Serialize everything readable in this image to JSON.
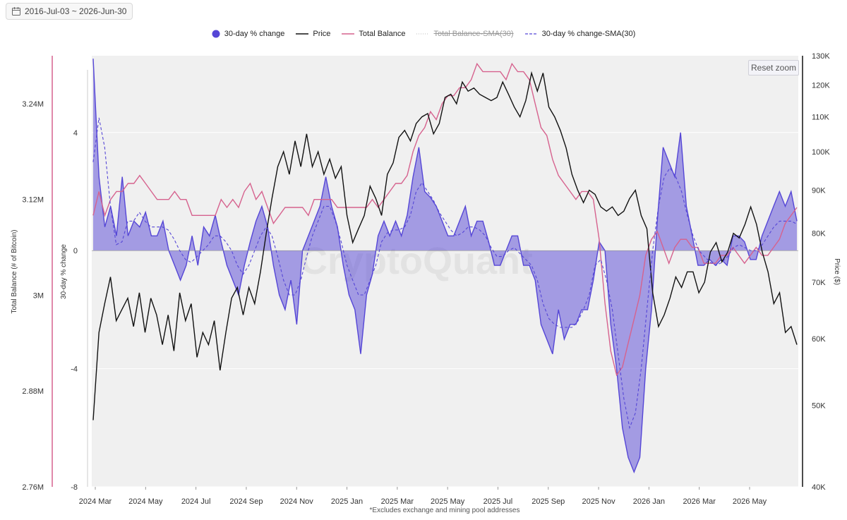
{
  "date_range": "2016-Jul-03 ~ 2026-Jun-30",
  "reset_zoom_label": "Reset zoom",
  "footnote": "*Excludes exchange and mining pool addresses",
  "watermark": "CryptoQuant",
  "colors": {
    "pct_fill": "#5546d6",
    "price": "#111111",
    "balance": "#d6628e",
    "sma_pct": "#5546d6",
    "sma_balance": "#bbbbbb"
  },
  "legend": [
    {
      "key": "pct",
      "label": "30-day % change",
      "type": "dot",
      "enabled": true
    },
    {
      "key": "price",
      "label": "Price",
      "type": "line",
      "enabled": true
    },
    {
      "key": "balance",
      "label": "Total Balance",
      "type": "line",
      "enabled": true
    },
    {
      "key": "balance_sma",
      "label": "Total Balance-SMA(30)",
      "type": "dotted",
      "enabled": false
    },
    {
      "key": "pct_sma",
      "label": "30-day % change-SMA(30)",
      "type": "dashed",
      "enabled": true
    }
  ],
  "chart_data": {
    "type": "line",
    "x_ticks": [
      "2024 Mar",
      "2024 May",
      "2024 Jul",
      "2024 Sep",
      "2024 Nov",
      "2025 Jan",
      "2025 Mar",
      "2025 May",
      "2025 Jul",
      "2025 Sep",
      "2025 Nov",
      "2026 Jan",
      "2026 Mar",
      "2026 May"
    ],
    "y_axes": {
      "balance": {
        "label": "Total Balance (# of Bitcoin)",
        "ticks": [
          "3.24M",
          "3.12M",
          "3M",
          "2.88M",
          "2.76M"
        ],
        "range": [
          2.76,
          3.3
        ]
      },
      "pct": {
        "label": "30-day % change",
        "ticks": [
          "4",
          "0",
          "-4",
          "-8"
        ],
        "range": [
          -8,
          6.6
        ]
      },
      "price": {
        "label": "Price ($)",
        "scale": "log",
        "ticks": [
          "130K",
          "120K",
          "110K",
          "100K",
          "90K",
          "80K",
          "70K",
          "60K",
          "50K",
          "40K"
        ],
        "range": [
          40,
          130
        ]
      }
    },
    "series": [
      {
        "name": "30-day % change",
        "key": "pct",
        "kind": "area",
        "values": [
          6.5,
          2.5,
          0.8,
          1.5,
          0.5,
          2.5,
          0.5,
          1.0,
          0.8,
          1.3,
          0.5,
          0.5,
          1.0,
          0,
          -0.5,
          -1.0,
          -0.5,
          0.5,
          -0.5,
          0.8,
          0.5,
          1.2,
          0.3,
          -0.5,
          -1.0,
          -1.5,
          -0.5,
          0.3,
          1.0,
          1.5,
          0.8,
          -0.5,
          -1.5,
          -2.0,
          -1.0,
          -2.5,
          0,
          0.5,
          1.0,
          1.5,
          2.5,
          1.5,
          0.8,
          -0.5,
          -1.5,
          -2.0,
          -3.5,
          -1.5,
          -0.8,
          0.5,
          1.0,
          0.5,
          1.0,
          0.5,
          1.2,
          2.5,
          3.5,
          2.0,
          1.8,
          1.5,
          1.0,
          0.5,
          0.5,
          1.0,
          1.5,
          0.5,
          1.0,
          1.0,
          0.3,
          -0.5,
          -0.5,
          0,
          0.5,
          0.5,
          -0.5,
          -0.5,
          -1.0,
          -2.5,
          -3.0,
          -3.5,
          -2.0,
          -3.0,
          -2.5,
          -2.5,
          -2.0,
          -2.0,
          -1.0,
          0.3,
          0,
          -2.5,
          -4.0,
          -6.0,
          -7.0,
          -7.5,
          -7.0,
          -4.0,
          -2.0,
          1.0,
          3.5,
          3.0,
          2.5,
          4.0,
          1.5,
          0.5,
          -0.5,
          -0.5,
          -0.3,
          -0.5,
          -0.3,
          -0.5,
          0.5,
          0.5,
          0.3,
          -0.3,
          -0.3,
          0.5,
          1.0,
          1.5,
          2.0,
          1.5,
          2.0,
          1.0
        ]
      },
      {
        "name": "Price",
        "key": "price",
        "kind": "line",
        "values": [
          48,
          61,
          66,
          71,
          63,
          65,
          67,
          62,
          68,
          61,
          67,
          64,
          59,
          64,
          58,
          68,
          63,
          66,
          57,
          61,
          59,
          63,
          55,
          61,
          67,
          69,
          64,
          69,
          66,
          72,
          80,
          88,
          96,
          100,
          94,
          103,
          96,
          105,
          96,
          100,
          94,
          98,
          93,
          96,
          84,
          78,
          81,
          84,
          91,
          88,
          84,
          94,
          97,
          104,
          106,
          103,
          108,
          110,
          111,
          105,
          108,
          116,
          117,
          114,
          121,
          118,
          119,
          117,
          116,
          115,
          116,
          121,
          117,
          113,
          110,
          115,
          124,
          118,
          124,
          113,
          110,
          106,
          101,
          94,
          90,
          87,
          90,
          89,
          86,
          85,
          86,
          84,
          85,
          88,
          90,
          84,
          81,
          68,
          62,
          64,
          67,
          71,
          69,
          72,
          72,
          68,
          70,
          76,
          78,
          74,
          76,
          80,
          79,
          82,
          86,
          82,
          76,
          72,
          66,
          68,
          61,
          62,
          59
        ]
      },
      {
        "name": "Total Balance",
        "key": "balance",
        "kind": "line",
        "values": [
          3.1,
          3.13,
          3.1,
          3.12,
          3.13,
          3.13,
          3.14,
          3.14,
          3.15,
          3.14,
          3.13,
          3.12,
          3.12,
          3.12,
          3.13,
          3.12,
          3.12,
          3.1,
          3.1,
          3.1,
          3.1,
          3.1,
          3.12,
          3.11,
          3.12,
          3.11,
          3.13,
          3.14,
          3.12,
          3.13,
          3.11,
          3.09,
          3.1,
          3.11,
          3.11,
          3.11,
          3.11,
          3.1,
          3.12,
          3.12,
          3.12,
          3.12,
          3.11,
          3.11,
          3.11,
          3.11,
          3.11,
          3.11,
          3.12,
          3.11,
          3.12,
          3.13,
          3.14,
          3.14,
          3.15,
          3.18,
          3.2,
          3.21,
          3.23,
          3.22,
          3.24,
          3.25,
          3.25,
          3.26,
          3.26,
          3.27,
          3.29,
          3.28,
          3.28,
          3.28,
          3.28,
          3.27,
          3.29,
          3.28,
          3.28,
          3.27,
          3.24,
          3.21,
          3.2,
          3.17,
          3.15,
          3.14,
          3.13,
          3.12,
          3.13,
          3.13,
          3.12,
          3.07,
          2.99,
          2.93,
          2.9,
          2.91,
          2.94,
          2.97,
          3.0,
          3.05,
          3.07,
          3.08,
          3.06,
          3.04,
          3.06,
          3.07,
          3.07,
          3.06,
          3.06,
          3.04,
          3.04,
          3.04,
          3.05,
          3.05,
          3.06,
          3.05,
          3.04,
          3.05,
          3.06,
          3.05,
          3.05,
          3.06,
          3.07,
          3.09,
          3.1,
          3.11
        ]
      },
      {
        "name": "30-day % change-SMA(30)",
        "key": "pct_sma",
        "kind": "dashed",
        "values": [
          3.0,
          4.5,
          3.5,
          1.5,
          0.2,
          0.3,
          1.0,
          1.0,
          1.3,
          1.0,
          0.8,
          0.8,
          0.8,
          0.7,
          0.4,
          0,
          -0.3,
          -0.4,
          -0.2,
          0,
          0.2,
          0.5,
          0.5,
          0.3,
          0,
          -0.5,
          -0.8,
          -0.5,
          0,
          0.5,
          0.8,
          0.5,
          -0.2,
          -1.0,
          -1.5,
          -1.5,
          -1.0,
          -0.2,
          0.5,
          1.0,
          1.5,
          1.5,
          1.0,
          0.3,
          -0.5,
          -1.0,
          -1.5,
          -1.5,
          -1.0,
          -0.5,
          0.3,
          0.6,
          0.7,
          0.7,
          0.8,
          1.2,
          2.0,
          2.3,
          2.0,
          1.7,
          1.3,
          1.0,
          0.7,
          0.5,
          0.6,
          0.8,
          0.8,
          0.7,
          0.5,
          0.1,
          -0.2,
          -0.2,
          0,
          0.1,
          -0.1,
          -0.3,
          -0.5,
          -1.0,
          -1.8,
          -2.3,
          -2.5,
          -2.6,
          -2.6,
          -2.6,
          -2.4,
          -2.0,
          -1.5,
          -0.5,
          -0.3,
          -1.0,
          -2.0,
          -3.5,
          -5.0,
          -6.0,
          -5.5,
          -4.0,
          -2.0,
          0,
          1.5,
          2.5,
          2.8,
          2.5,
          2.0,
          1.2,
          0.5,
          0,
          -0.2,
          -0.4,
          -0.5,
          -0.4,
          -0.2,
          0.1,
          0.2,
          0.1,
          0,
          0,
          0.2,
          0.5,
          0.8,
          1.0,
          1.0,
          1.0,
          0.9
        ]
      }
    ]
  }
}
